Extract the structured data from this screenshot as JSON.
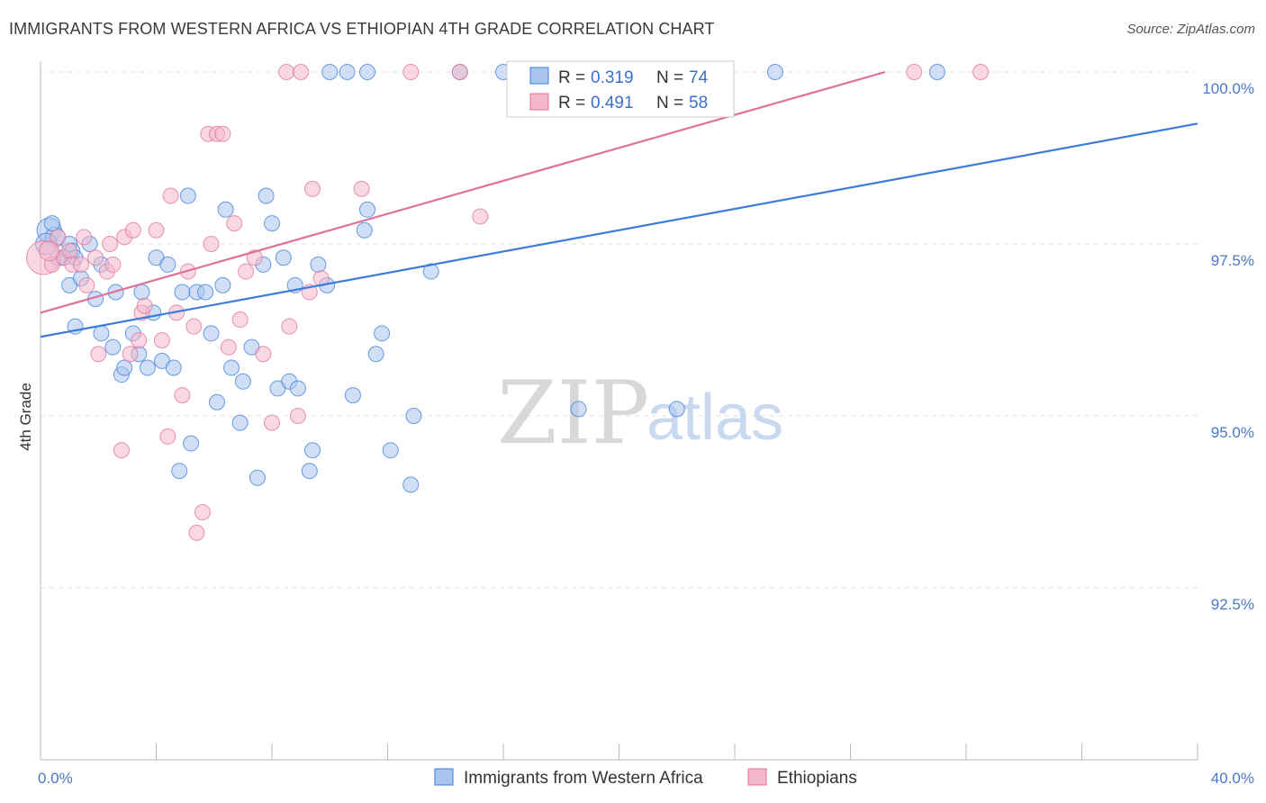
{
  "title": "IMMIGRANTS FROM WESTERN AFRICA VS ETHIOPIAN 4TH GRADE CORRELATION CHART",
  "source": "Source: ZipAtlas.com",
  "watermark": {
    "zip": "ZIP",
    "atlas": "atlas"
  },
  "legend_box": {
    "r_label": "R =",
    "n_label": "N =",
    "rows": [
      {
        "r": "0.319",
        "n": "74"
      },
      {
        "r": "0.491",
        "n": "58"
      }
    ]
  },
  "bottom_legend": [
    "Immigrants from Western Africa",
    "Ethiopians"
  ],
  "colors": {
    "blue": "#3b7dd8",
    "pink": "#e0709a",
    "blue_fill": "#a9c5ee",
    "pink_fill": "#f4b8cc"
  },
  "chart_data": {
    "type": "scatter",
    "title": "IMMIGRANTS FROM WESTERN AFRICA VS ETHIOPIAN 4TH GRADE CORRELATION CHART",
    "xlabel": "",
    "ylabel": "4th Grade",
    "xlim": [
      0,
      40
    ],
    "ylim": [
      90.2,
      100.3
    ],
    "x_tick_labels": [
      "0.0%",
      "40.0%"
    ],
    "y_ticks": [
      92.5,
      95.0,
      97.5,
      100.0
    ],
    "y_tick_labels": [
      "92.5%",
      "95.0%",
      "97.5%",
      "100.0%"
    ],
    "grid": true,
    "legend_position": "top-center",
    "series": [
      {
        "name": "Immigrants from Western Africa",
        "color": "#3b7dd8",
        "trend": {
          "x": [
            0,
            40
          ],
          "y": [
            96.15,
            99.25
          ]
        },
        "points": [
          [
            0.3,
            97.7,
            1.6
          ],
          [
            0.5,
            97.6,
            1.3
          ],
          [
            0.6,
            97.3,
            1.0
          ],
          [
            0.8,
            97.3,
            1.0
          ],
          [
            1.0,
            97.5,
            1.0
          ],
          [
            1.1,
            97.4,
            1.0
          ],
          [
            1.2,
            97.3,
            1.0
          ],
          [
            1.0,
            96.9,
            1.0
          ],
          [
            1.2,
            96.3,
            1.0
          ],
          [
            1.4,
            97.0,
            1.0
          ],
          [
            1.7,
            97.5,
            1.0
          ],
          [
            1.9,
            96.7,
            1.0
          ],
          [
            2.1,
            97.2,
            1.0
          ],
          [
            2.1,
            96.2,
            1.0
          ],
          [
            2.5,
            96.0,
            1.0
          ],
          [
            2.6,
            96.8,
            1.0
          ],
          [
            2.8,
            95.6,
            1.0
          ],
          [
            2.9,
            95.7,
            1.0
          ],
          [
            3.2,
            96.2,
            1.0
          ],
          [
            3.4,
            95.9,
            1.0
          ],
          [
            3.5,
            96.8,
            1.0
          ],
          [
            3.7,
            95.7,
            1.0
          ],
          [
            3.9,
            96.5,
            1.0
          ],
          [
            4.0,
            97.3,
            1.0
          ],
          [
            4.2,
            95.8,
            1.0
          ],
          [
            4.4,
            97.2,
            1.0
          ],
          [
            4.6,
            95.7,
            1.0
          ],
          [
            4.9,
            96.8,
            1.0
          ],
          [
            5.1,
            98.2,
            1.0
          ],
          [
            5.2,
            94.6,
            1.0
          ],
          [
            4.8,
            94.2,
            1.0
          ],
          [
            5.4,
            96.8,
            1.0
          ],
          [
            5.7,
            96.8,
            1.0
          ],
          [
            5.9,
            96.2,
            1.0
          ],
          [
            6.1,
            95.2,
            1.0
          ],
          [
            6.3,
            96.9,
            1.0
          ],
          [
            6.4,
            98.0,
            1.0
          ],
          [
            6.6,
            95.7,
            1.0
          ],
          [
            6.9,
            94.9,
            1.0
          ],
          [
            7.0,
            95.5,
            1.0
          ],
          [
            7.3,
            96.0,
            1.0
          ],
          [
            7.5,
            94.1,
            1.0
          ],
          [
            7.7,
            97.2,
            1.0
          ],
          [
            7.8,
            98.2,
            1.0
          ],
          [
            8.0,
            97.8,
            1.0
          ],
          [
            8.2,
            95.4,
            1.0
          ],
          [
            8.4,
            97.3,
            1.0
          ],
          [
            8.6,
            95.5,
            1.0
          ],
          [
            8.8,
            96.9,
            1.0
          ],
          [
            8.9,
            95.4,
            1.0
          ],
          [
            9.3,
            94.2,
            1.0
          ],
          [
            9.4,
            94.5,
            1.0
          ],
          [
            9.6,
            97.2,
            1.0
          ],
          [
            9.9,
            96.9,
            1.0
          ],
          [
            10.0,
            100.0,
            1.0
          ],
          [
            10.6,
            100.0,
            1.0
          ],
          [
            11.3,
            100.0,
            1.0
          ],
          [
            10.8,
            95.3,
            1.0
          ],
          [
            11.2,
            97.7,
            1.0
          ],
          [
            11.3,
            98.0,
            1.0
          ],
          [
            11.6,
            95.9,
            1.0
          ],
          [
            11.8,
            96.2,
            1.0
          ],
          [
            12.1,
            94.5,
            1.0
          ],
          [
            12.8,
            94.0,
            1.0
          ],
          [
            12.9,
            95.0,
            1.0
          ],
          [
            13.5,
            97.1,
            1.0
          ],
          [
            14.5,
            100.0,
            1.0
          ],
          [
            16.0,
            100.0,
            1.0
          ],
          [
            18.6,
            95.1,
            1.0
          ],
          [
            22.0,
            95.1,
            1.0
          ],
          [
            25.4,
            100.0,
            1.0
          ],
          [
            31.0,
            100.0,
            1.0
          ],
          [
            0.2,
            97.5,
            1.4
          ],
          [
            0.4,
            97.8,
            1.0
          ]
        ]
      },
      {
        "name": "Ethiopians",
        "color": "#e0709a",
        "trend": {
          "x": [
            0,
            29.2
          ],
          "y": [
            96.5,
            100.0
          ]
        },
        "points": [
          [
            0.1,
            97.3,
            2.2
          ],
          [
            0.4,
            97.2,
            1.0
          ],
          [
            0.6,
            97.6,
            1.0
          ],
          [
            0.8,
            97.3,
            1.0
          ],
          [
            1.0,
            97.4,
            1.0
          ],
          [
            1.1,
            97.2,
            1.0
          ],
          [
            1.4,
            97.2,
            1.0
          ],
          [
            1.5,
            97.6,
            1.0
          ],
          [
            1.6,
            96.9,
            1.0
          ],
          [
            1.9,
            97.3,
            1.0
          ],
          [
            2.0,
            95.9,
            1.0
          ],
          [
            2.3,
            97.1,
            1.0
          ],
          [
            2.4,
            97.5,
            1.0
          ],
          [
            2.5,
            97.2,
            1.0
          ],
          [
            2.8,
            94.5,
            1.0
          ],
          [
            2.9,
            97.6,
            1.0
          ],
          [
            3.1,
            95.9,
            1.0
          ],
          [
            3.2,
            97.7,
            1.0
          ],
          [
            3.4,
            96.1,
            1.0
          ],
          [
            3.5,
            96.5,
            1.0
          ],
          [
            3.6,
            96.6,
            1.0
          ],
          [
            4.0,
            97.7,
            1.0
          ],
          [
            4.2,
            96.1,
            1.0
          ],
          [
            4.4,
            94.7,
            1.0
          ],
          [
            4.5,
            98.2,
            1.0
          ],
          [
            4.7,
            96.5,
            1.0
          ],
          [
            4.9,
            95.3,
            1.0
          ],
          [
            5.1,
            97.1,
            1.0
          ],
          [
            5.3,
            96.3,
            1.0
          ],
          [
            5.4,
            93.3,
            1.0
          ],
          [
            5.6,
            93.6,
            1.0
          ],
          [
            5.8,
            99.1,
            1.0
          ],
          [
            5.9,
            97.5,
            1.0
          ],
          [
            6.1,
            99.1,
            1.0
          ],
          [
            6.3,
            99.1,
            1.0
          ],
          [
            6.5,
            96.0,
            1.0
          ],
          [
            6.7,
            97.8,
            1.0
          ],
          [
            6.9,
            96.4,
            1.0
          ],
          [
            7.1,
            97.1,
            1.0
          ],
          [
            7.4,
            97.3,
            1.0
          ],
          [
            7.7,
            95.9,
            1.0
          ],
          [
            8.0,
            94.9,
            1.0
          ],
          [
            8.6,
            96.3,
            1.0
          ],
          [
            8.9,
            95.0,
            1.0
          ],
          [
            9.3,
            96.8,
            1.0
          ],
          [
            9.7,
            97.0,
            1.0
          ],
          [
            9.4,
            98.3,
            1.0
          ],
          [
            11.1,
            98.3,
            1.0
          ],
          [
            8.5,
            100.0,
            1.0
          ],
          [
            9.0,
            100.0,
            1.0
          ],
          [
            12.8,
            100.0,
            1.0
          ],
          [
            14.5,
            100.0,
            1.0
          ],
          [
            15.2,
            97.9,
            1.0
          ],
          [
            19.0,
            100.0,
            1.0
          ],
          [
            19.5,
            100.0,
            1.0
          ],
          [
            30.2,
            100.0,
            1.0
          ],
          [
            32.5,
            100.0,
            1.0
          ],
          [
            0.3,
            97.4,
            1.3
          ]
        ]
      }
    ]
  }
}
